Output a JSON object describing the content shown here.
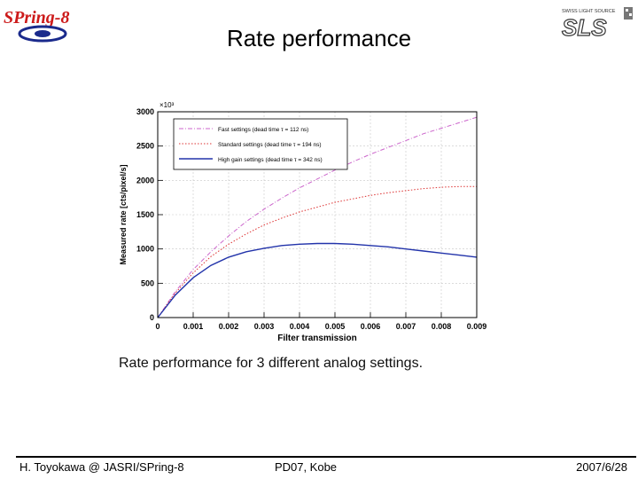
{
  "slide": {
    "title": "Rate performance",
    "caption": "Rate performance for 3 different analog settings.",
    "footer_left": "H. Toyokawa @ JASRI/SPring-8",
    "footer_center": "PD07, Kobe",
    "footer_right": "2007/6/28"
  },
  "logos": {
    "left_text": "SPring-8",
    "right_top_text": "SWISS LIGHT SOURCE",
    "right_mark": "SLS"
  },
  "chart_data": {
    "type": "line",
    "xlabel": "Filter transmission",
    "ylabel": "Measured rate [cts/pixel/s]",
    "y_multiplier": "×10³",
    "xlim": [
      0,
      0.009
    ],
    "ylim": [
      0,
      3000
    ],
    "xticks": [
      "0",
      "0.001",
      "0.002",
      "0.003",
      "0.004",
      "0.005",
      "0.006",
      "0.007",
      "0.008",
      "0.009"
    ],
    "yticks": [
      "0",
      "500",
      "1000",
      "1500",
      "2000",
      "2500",
      "3000"
    ],
    "grid": true,
    "legend_position": "top-left",
    "x": [
      0,
      0.0005,
      0.001,
      0.0015,
      0.002,
      0.0025,
      0.003,
      0.0035,
      0.004,
      0.0045,
      0.005,
      0.0055,
      0.006,
      0.0065,
      0.007,
      0.0075,
      0.008,
      0.0085,
      0.009
    ],
    "series": [
      {
        "name": "Fast settings (dead time τ = 112 ns)",
        "color": "#cc66cc",
        "style": "dashdot",
        "values": [
          0,
          380,
          700,
          960,
          1190,
          1400,
          1580,
          1740,
          1890,
          2020,
          2150,
          2270,
          2380,
          2480,
          2580,
          2680,
          2760,
          2840,
          2920
        ]
      },
      {
        "name": "Standard settings (dead time τ = 194 ns)",
        "color": "#dd3333",
        "style": "dotted",
        "values": [
          0,
          360,
          650,
          890,
          1070,
          1220,
          1350,
          1450,
          1540,
          1610,
          1680,
          1730,
          1780,
          1820,
          1850,
          1880,
          1900,
          1910,
          1910
        ]
      },
      {
        "name": "High gain settings (dead time τ = 342 ns)",
        "color": "#2233aa",
        "style": "solid",
        "values": [
          0,
          330,
          580,
          760,
          880,
          960,
          1010,
          1050,
          1070,
          1080,
          1080,
          1070,
          1050,
          1030,
          1000,
          970,
          940,
          910,
          880
        ]
      }
    ]
  }
}
